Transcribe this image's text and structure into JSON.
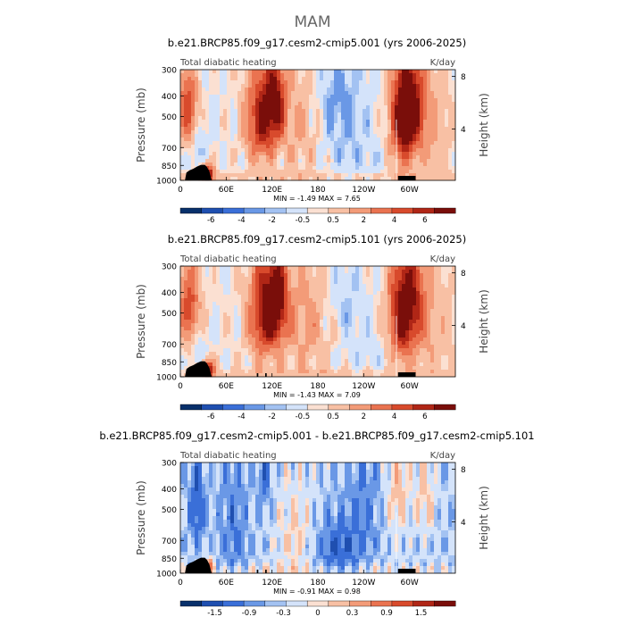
{
  "page_title": "MAM",
  "colors": {
    "negative": [
      "#08306b",
      "#1f4fb0",
      "#3a6fd8",
      "#6a98e6",
      "#a3c2f2",
      "#d4e3fa"
    ],
    "positive": [
      "#fbe0d2",
      "#f8c0a4",
      "#f39b78",
      "#ea7350",
      "#d84a2c",
      "#b02616",
      "#7a0e0a"
    ],
    "topography": "#000000",
    "neutral": "#f7f3f0"
  },
  "chart_data": [
    {
      "type": "heatmap",
      "title": "b.e21.BRCP85.f09_g17.cesm2-cmip5.001 (yrs 2006-2025)",
      "left_label": "Total diabatic heating",
      "right_label": "K/day",
      "ylabel": "Pressure (mb)",
      "ylabel_right": "Height (km)",
      "x_ticks": [
        "0",
        "60E",
        "120E",
        "180",
        "120W",
        "60W"
      ],
      "y_ticks": [
        "300",
        "400",
        "500",
        "700",
        "850",
        "1000"
      ],
      "y_right_ticks": [
        "8",
        "4"
      ],
      "stats": "MIN =   -1.49   MAX =   7.65",
      "colorbar_labels": [
        "-6",
        "-4",
        "-2",
        "-0.5",
        "0.5",
        "2",
        "4",
        "6"
      ],
      "min": -1.49,
      "max": 7.65
    },
    {
      "type": "heatmap",
      "title": "b.e21.BRCP85.f09_g17.cesm2-cmip5.101 (yrs 2006-2025)",
      "left_label": "Total diabatic heating",
      "right_label": "K/day",
      "ylabel": "Pressure (mb)",
      "ylabel_right": "Height (km)",
      "x_ticks": [
        "0",
        "60E",
        "120E",
        "180",
        "120W",
        "60W"
      ],
      "y_ticks": [
        "300",
        "400",
        "500",
        "700",
        "850",
        "1000"
      ],
      "y_right_ticks": [
        "8",
        "4"
      ],
      "stats": "MIN =   -1.43   MAX =   7.09",
      "colorbar_labels": [
        "-6",
        "-4",
        "-2",
        "-0.5",
        "0.5",
        "2",
        "4",
        "6"
      ],
      "min": -1.43,
      "max": 7.09
    },
    {
      "type": "heatmap",
      "title": "b.e21.BRCP85.f09_g17.cesm2-cmip5.001 - b.e21.BRCP85.f09_g17.cesm2-cmip5.101",
      "left_label": "Total diabatic heating",
      "right_label": "K/day",
      "ylabel": "Pressure (mb)",
      "ylabel_right": "Height (km)",
      "x_ticks": [
        "0",
        "60E",
        "120E",
        "180",
        "120W",
        "60W"
      ],
      "y_ticks": [
        "300",
        "400",
        "500",
        "700",
        "850",
        "1000"
      ],
      "y_right_ticks": [
        "8",
        "4"
      ],
      "stats": "MIN =   -0.91   MAX =   0.98",
      "colorbar_labels": [
        "-1.5",
        "-0.9",
        "-0.3",
        "0",
        "0.3",
        "0.9",
        "1.5"
      ],
      "min": -0.91,
      "max": 0.98
    }
  ]
}
